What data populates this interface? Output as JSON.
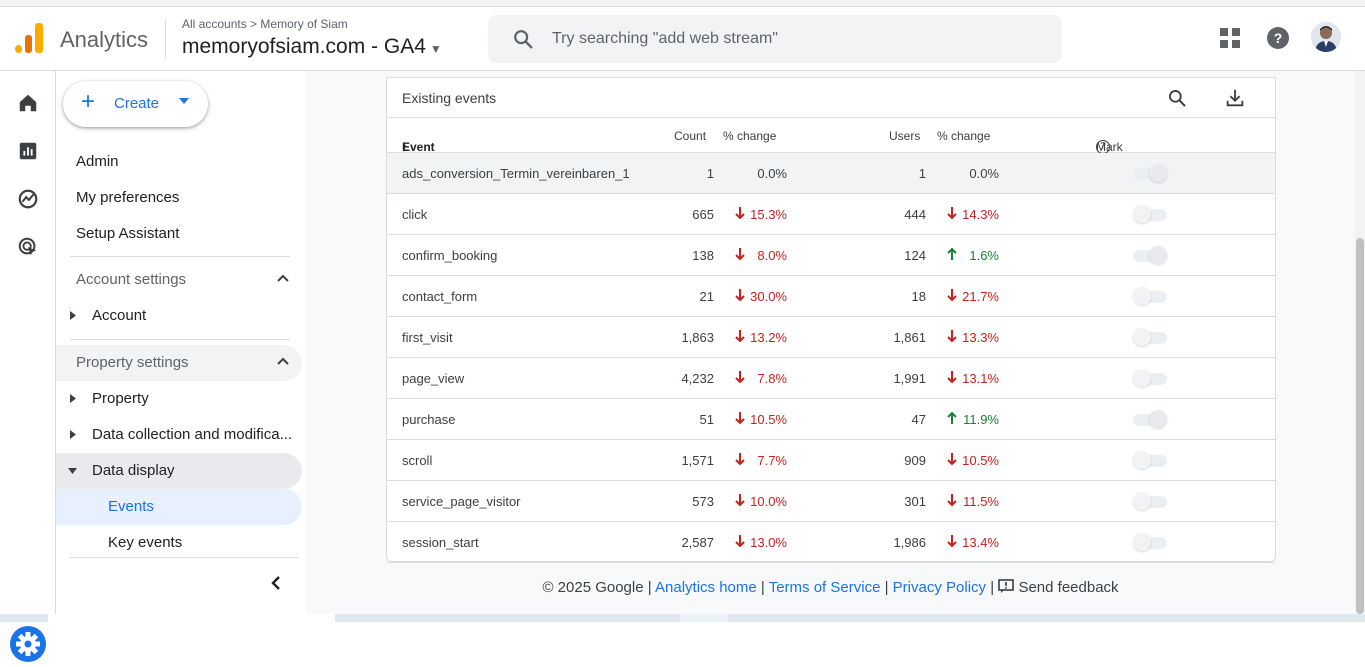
{
  "header": {
    "app_name": "Analytics",
    "breadcrumb_all": "All accounts",
    "breadcrumb_sep": ">",
    "breadcrumb_account": "Memory of Siam",
    "property": "memoryofsiam.com - GA4",
    "search_placeholder": "Try searching \"add web stream\"",
    "icons": [
      "apps-grid-icon",
      "help-icon",
      "avatar"
    ]
  },
  "rail": {
    "icons": [
      "home-icon",
      "reports-icon",
      "explore-icon",
      "advertising-icon",
      "admin-gear-icon"
    ]
  },
  "sidebar": {
    "create_label": "Create",
    "items": [
      "Admin",
      "My preferences",
      "Setup Assistant"
    ],
    "account_settings": "Account settings",
    "account": "Account",
    "property_settings": "Property settings",
    "property": "Property",
    "data_collection": "Data collection and modifica...",
    "data_display": "Data display",
    "events": "Events",
    "key_events": "Key events"
  },
  "table": {
    "title": "Existing events",
    "columns": {
      "event_name": "Event name",
      "count": "Count",
      "count_change": "% change",
      "users": "Users",
      "users_change": "% change",
      "mark_key": "Mark as key event"
    },
    "rows": [
      {
        "name": "ads_conversion_Termin_vereinbaren_1",
        "count": "1",
        "count_dir": "none",
        "count_change": "0.0%",
        "users": "1",
        "users_dir": "none",
        "users_change": "0.0%",
        "key": true
      },
      {
        "name": "click",
        "count": "665",
        "count_dir": "down",
        "count_change": "15.3%",
        "users": "444",
        "users_dir": "down",
        "users_change": "14.3%",
        "key": false
      },
      {
        "name": "confirm_booking",
        "count": "138",
        "count_dir": "down",
        "count_change": "8.0%",
        "users": "124",
        "users_dir": "up",
        "users_change": "1.6%",
        "key": true
      },
      {
        "name": "contact_form",
        "count": "21",
        "count_dir": "down",
        "count_change": "30.0%",
        "users": "18",
        "users_dir": "down",
        "users_change": "21.7%",
        "key": false
      },
      {
        "name": "first_visit",
        "count": "1,863",
        "count_dir": "down",
        "count_change": "13.2%",
        "users": "1,861",
        "users_dir": "down",
        "users_change": "13.3%",
        "key": false
      },
      {
        "name": "page_view",
        "count": "4,232",
        "count_dir": "down",
        "count_change": "7.8%",
        "users": "1,991",
        "users_dir": "down",
        "users_change": "13.1%",
        "key": false
      },
      {
        "name": "purchase",
        "count": "51",
        "count_dir": "down",
        "count_change": "10.5%",
        "users": "47",
        "users_dir": "up",
        "users_change": "11.9%",
        "key": true
      },
      {
        "name": "scroll",
        "count": "1,571",
        "count_dir": "down",
        "count_change": "7.7%",
        "users": "909",
        "users_dir": "down",
        "users_change": "10.5%",
        "key": false
      },
      {
        "name": "service_page_visitor",
        "count": "573",
        "count_dir": "down",
        "count_change": "10.0%",
        "users": "301",
        "users_dir": "down",
        "users_change": "11.5%",
        "key": false
      },
      {
        "name": "session_start",
        "count": "2,587",
        "count_dir": "down",
        "count_change": "13.0%",
        "users": "1,986",
        "users_dir": "down",
        "users_change": "13.4%",
        "key": false
      }
    ]
  },
  "footer": {
    "copyright": "© 2025 Google",
    "sep": "|",
    "analytics_home": "Analytics home",
    "terms": "Terms of Service",
    "privacy": "Privacy Policy",
    "feedback": "Send feedback"
  },
  "colors": {
    "accent": "#1a73e8",
    "down": "#c5221f",
    "up": "#188038",
    "logo": "#f9ab00"
  }
}
